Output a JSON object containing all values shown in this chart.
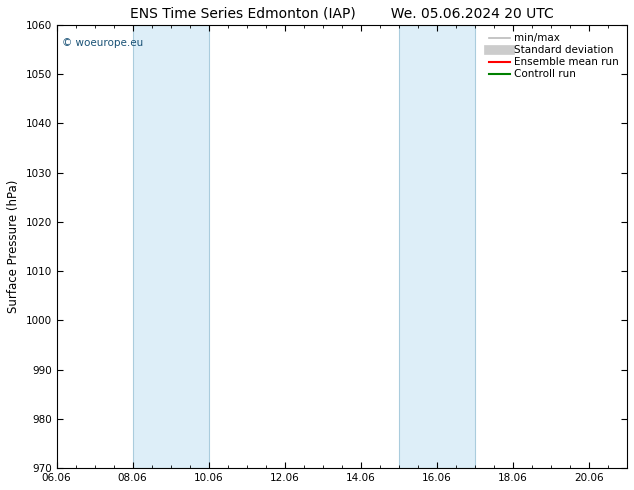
{
  "title_left": "ENS Time Series Edmonton (IAP)",
  "title_right": "We. 05.06.2024 20 UTC",
  "ylabel": "Surface Pressure (hPa)",
  "ylim": [
    970,
    1060
  ],
  "yticks": [
    970,
    980,
    990,
    1000,
    1010,
    1020,
    1030,
    1040,
    1050,
    1060
  ],
  "xlim_start": 0.0,
  "xlim_end": 15.0,
  "xtick_labels": [
    "06.06",
    "08.06",
    "10.06",
    "12.06",
    "14.06",
    "16.06",
    "18.06",
    "20.06"
  ],
  "xtick_positions": [
    0,
    2,
    4,
    6,
    8,
    10,
    12,
    14
  ],
  "shaded_bands": [
    {
      "x_start": 2.0,
      "x_end": 4.0,
      "facecolor": "#ddeef8",
      "edgecolor": "#aaccdd"
    },
    {
      "x_start": 9.0,
      "x_end": 11.0,
      "facecolor": "#ddeef8",
      "edgecolor": "#aaccdd"
    }
  ],
  "legend_entries": [
    {
      "label": "min/max",
      "color": "#bbbbbb",
      "lw": 1.2,
      "linestyle": "-"
    },
    {
      "label": "Standard deviation",
      "color": "#cccccc",
      "lw": 7,
      "linestyle": "-"
    },
    {
      "label": "Ensemble mean run",
      "color": "#ff0000",
      "lw": 1.5,
      "linestyle": "-"
    },
    {
      "label": "Controll run",
      "color": "#008000",
      "lw": 1.5,
      "linestyle": "-"
    }
  ],
  "watermark": "© woeurope.eu",
  "watermark_color": "#1a5276",
  "background_color": "#ffffff",
  "plot_background": "#ffffff",
  "title_fontsize": 10,
  "label_fontsize": 8.5,
  "tick_fontsize": 7.5,
  "legend_fontsize": 7.5
}
